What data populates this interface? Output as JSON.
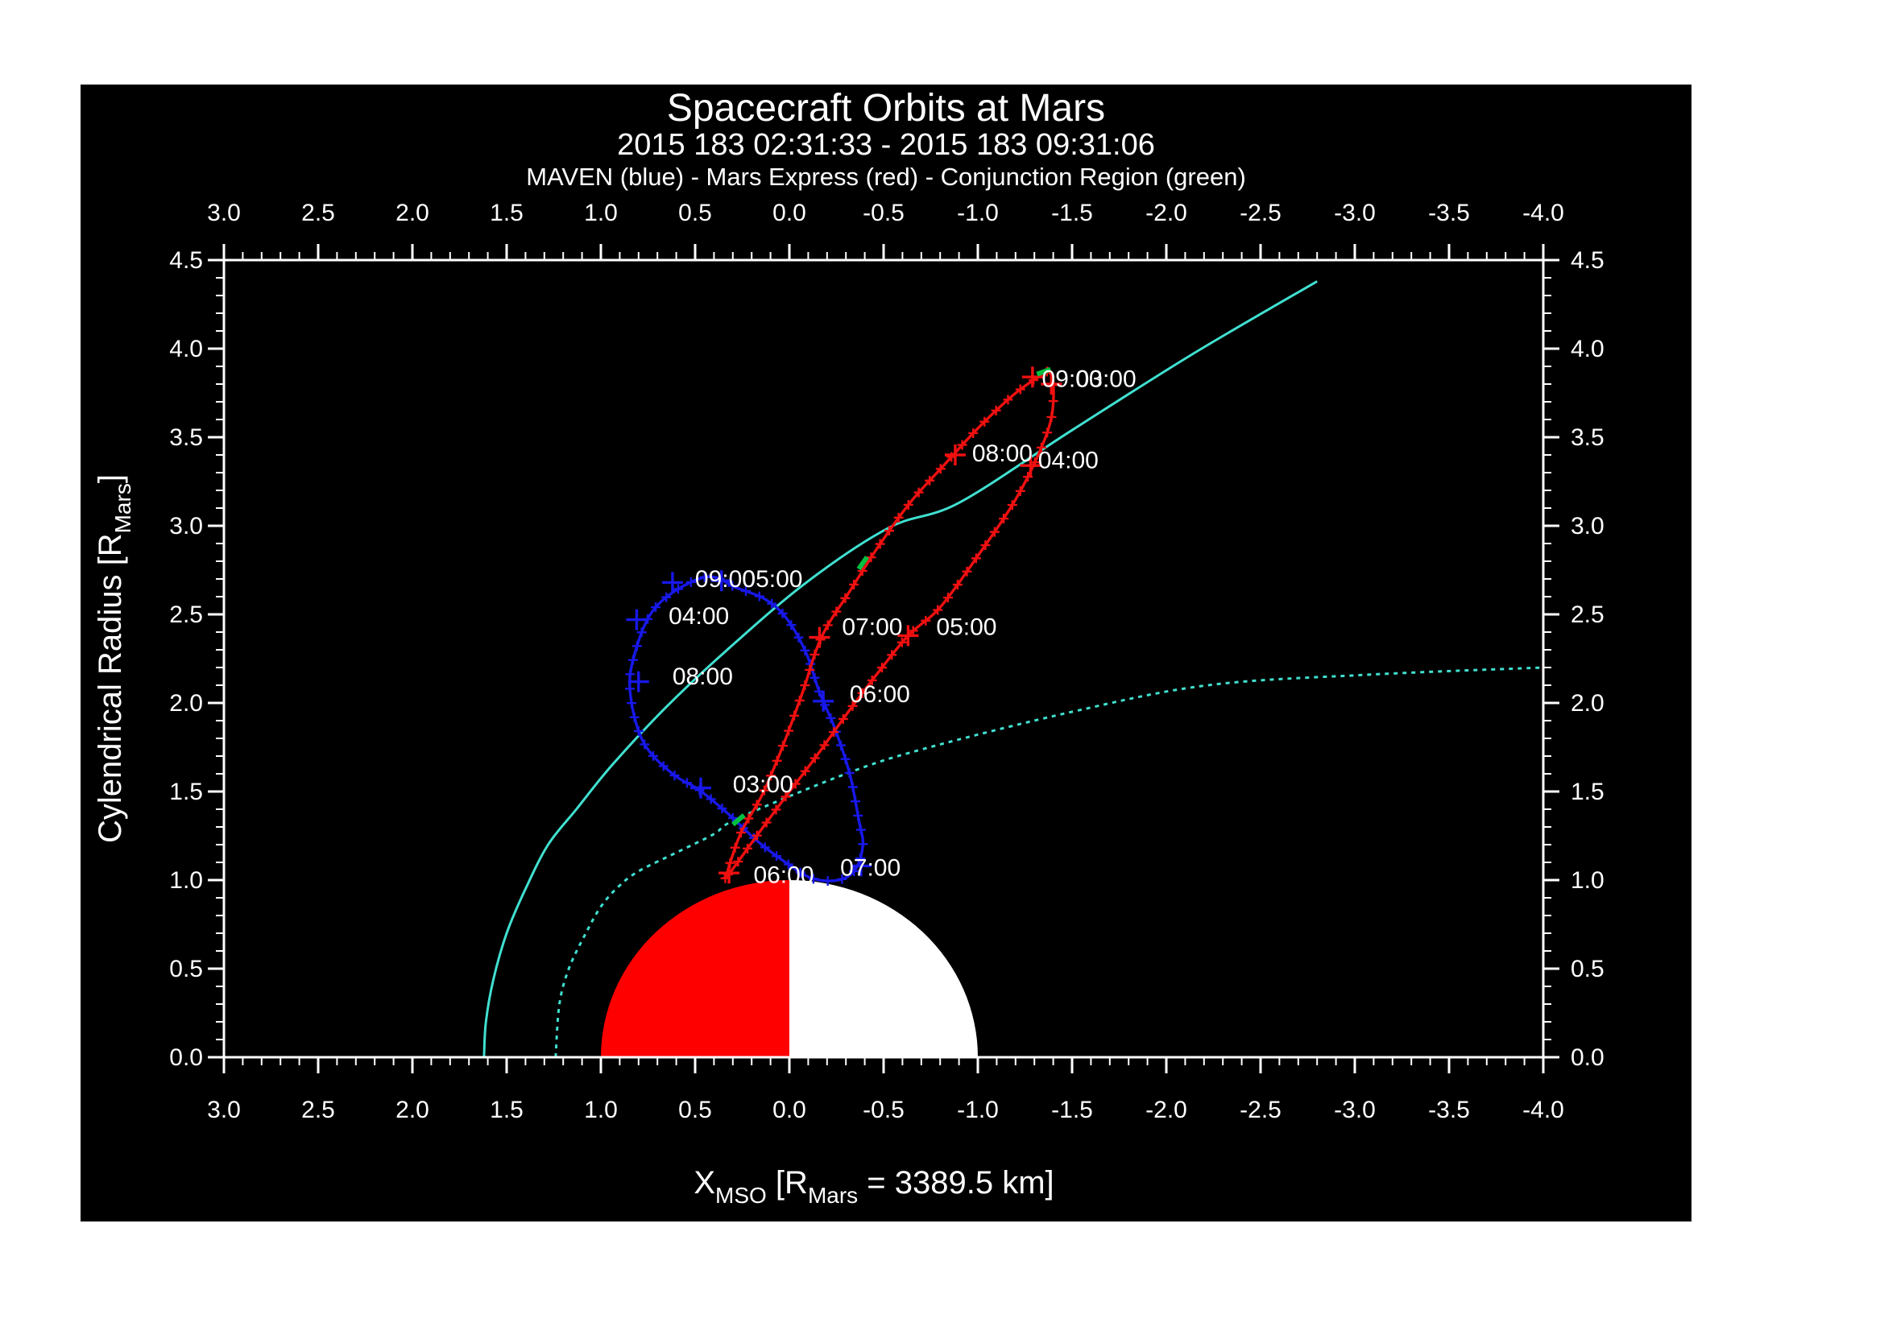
{
  "header": {
    "title": "Spacecraft Orbits at Mars",
    "subtitle": "2015 183 02:31:33 - 2015 183 09:31:06",
    "legend": "MAVEN (blue) - Mars Express (red) - Conjunction Region (green)"
  },
  "colors": {
    "background": "#000000",
    "frame": "#ffffff",
    "maven_blue": "#1818e8",
    "mex_red": "#f01010",
    "mars_day_red": "#ff0000",
    "mars_night_white": "#ffffff",
    "boundary_cyan": "#40e0d0",
    "conjunction_green": "#00c040"
  },
  "axes": {
    "x": {
      "label_parts": [
        "X",
        "MSO",
        " [R",
        "Mars",
        " = 3389.5 km]"
      ],
      "min": 3.0,
      "max": -4.0,
      "major_step": 0.5,
      "minor_step": 0.1,
      "tick_labels": [
        "3.0",
        "2.5",
        "2.0",
        "1.5",
        "1.0",
        "0.5",
        "0.0",
        "-0.5",
        "-1.0",
        "-1.5",
        "-2.0",
        "-2.5",
        "-3.0",
        "-3.5",
        "-4.0"
      ]
    },
    "y": {
      "label_parts": [
        "Cylendrical Radius [R",
        "Mars",
        "]"
      ],
      "min": 0.0,
      "max": 4.5,
      "major_step": 0.5,
      "minor_step": 0.1,
      "tick_labels": [
        "0.0",
        "0.5",
        "1.0",
        "1.5",
        "2.0",
        "2.5",
        "3.0",
        "3.5",
        "4.0",
        "4.5"
      ]
    }
  },
  "chart_data": {
    "type": "line",
    "title": "Spacecraft Orbits at Mars",
    "xlabel": "X_MSO [R_Mars = 3389.5 km]",
    "ylabel": "Cylendrical Radius [R_Mars]",
    "xlim": [
      3.0,
      -4.0
    ],
    "ylim": [
      0.0,
      4.5
    ],
    "grid": false,
    "series": [
      {
        "name": "MAVEN orbit",
        "color_key": "maven_blue",
        "style": "solid",
        "markers": true,
        "closed": true,
        "marker_spacing_px": 18,
        "points": [
          [
            0.45,
            2.71
          ],
          [
            0.71,
            2.54
          ],
          [
            0.83,
            2.24
          ],
          [
            0.84,
            2.02
          ],
          [
            0.77,
            1.77
          ],
          [
            0.62,
            1.6
          ],
          [
            0.48,
            1.51
          ],
          [
            0.32,
            1.37
          ],
          [
            0.17,
            1.22
          ],
          [
            0.02,
            1.1
          ],
          [
            -0.12,
            1.01
          ],
          [
            -0.26,
            1.0
          ],
          [
            -0.35,
            1.06
          ],
          [
            -0.39,
            1.2
          ],
          [
            -0.37,
            1.33
          ],
          [
            -0.32,
            1.6
          ],
          [
            -0.24,
            1.86
          ],
          [
            -0.16,
            2.06
          ],
          [
            -0.09,
            2.28
          ],
          [
            0.01,
            2.47
          ],
          [
            0.12,
            2.58
          ],
          [
            0.28,
            2.65
          ]
        ]
      },
      {
        "name": "Mars Express orbit",
        "color_key": "mex_red",
        "style": "solid",
        "markers": true,
        "closed": false,
        "marker_spacing_px": 20,
        "points": [
          [
            0.34,
            1.01
          ],
          [
            0.26,
            1.26
          ],
          [
            0.14,
            1.49
          ],
          [
            0.03,
            1.77
          ],
          [
            -0.07,
            2.06
          ],
          [
            -0.17,
            2.37
          ],
          [
            -0.32,
            2.63
          ],
          [
            -0.47,
            2.88
          ],
          [
            -0.64,
            3.13
          ],
          [
            -0.81,
            3.33
          ],
          [
            -1.0,
            3.55
          ],
          [
            -1.19,
            3.74
          ],
          [
            -1.32,
            3.84
          ],
          [
            -1.37,
            3.87
          ],
          [
            -1.4,
            3.81
          ],
          [
            -1.39,
            3.61
          ],
          [
            -1.32,
            3.4
          ],
          [
            -1.19,
            3.13
          ],
          [
            -1.0,
            2.83
          ],
          [
            -0.8,
            2.54
          ],
          [
            -0.63,
            2.38
          ],
          [
            -0.47,
            2.17
          ],
          [
            -0.32,
            1.96
          ],
          [
            -0.13,
            1.68
          ],
          [
            0.02,
            1.47
          ],
          [
            0.18,
            1.24
          ],
          [
            0.31,
            1.05
          ],
          [
            0.35,
            1.01
          ]
        ]
      },
      {
        "name": "Bow shock boundary",
        "color_key": "boundary_cyan",
        "style": "solid",
        "markers": false,
        "closed": false,
        "points": [
          [
            -2.8,
            4.38
          ],
          [
            -2.14,
            3.97
          ],
          [
            -1.5,
            3.54
          ],
          [
            -0.9,
            3.13
          ],
          [
            -0.53,
            2.99
          ],
          [
            -0.09,
            2.68
          ],
          [
            0.34,
            2.29
          ],
          [
            0.66,
            1.97
          ],
          [
            0.94,
            1.65
          ],
          [
            1.13,
            1.4
          ],
          [
            1.28,
            1.2
          ],
          [
            1.4,
            0.95
          ],
          [
            1.5,
            0.7
          ],
          [
            1.57,
            0.44
          ],
          [
            1.61,
            0.2
          ],
          [
            1.62,
            0.0
          ]
        ]
      },
      {
        "name": "MPB boundary",
        "color_key": "boundary_cyan",
        "style": "dotted",
        "markers": false,
        "closed": false,
        "points": [
          [
            1.24,
            0.0
          ],
          [
            1.22,
            0.3
          ],
          [
            1.17,
            0.5
          ],
          [
            1.08,
            0.7
          ],
          [
            1.0,
            0.85
          ],
          [
            0.91,
            0.96
          ],
          [
            0.8,
            1.05
          ],
          [
            0.59,
            1.16
          ],
          [
            0.4,
            1.26
          ],
          [
            0.27,
            1.35
          ],
          [
            -0.3,
            1.6
          ],
          [
            -0.71,
            1.74
          ],
          [
            -1.5,
            1.95
          ],
          [
            -2.22,
            2.1
          ],
          [
            -3.08,
            2.16
          ],
          [
            -4.0,
            2.2
          ]
        ]
      }
    ],
    "mars": {
      "center_x": 0.0,
      "center_r": 0.0,
      "radius": 1.0,
      "day_side": "left half red (+X sunward)",
      "night_side": "right half white"
    },
    "time_labels": [
      {
        "series": "maven",
        "text": "03:00",
        "x": 0.14,
        "r": 1.54
      },
      {
        "series": "maven",
        "text": "04:00",
        "x": 0.48,
        "r": 2.49
      },
      {
        "series": "maven",
        "text": "09:00",
        "x": 0.34,
        "r": 2.7
      },
      {
        "series": "maven",
        "text": "05:00",
        "x": 0.09,
        "r": 2.7
      },
      {
        "series": "maven",
        "text": "06:00",
        "x": -0.48,
        "r": 2.05
      },
      {
        "series": "maven",
        "text": "07:00",
        "x": -0.43,
        "r": 1.07
      },
      {
        "series": "maven",
        "text": "08:00",
        "x": 0.46,
        "r": 2.15
      },
      {
        "series": "mex",
        "text": "09:00",
        "x": -1.5,
        "r": 3.83
      },
      {
        "series": "mex",
        "text": "03:00",
        "x": -1.68,
        "r": 3.83
      },
      {
        "series": "mex",
        "text": "04:00",
        "x": -1.48,
        "r": 3.37
      },
      {
        "series": "mex",
        "text": "08:00",
        "x": -1.13,
        "r": 3.41
      },
      {
        "series": "mex",
        "text": "07:00",
        "x": -0.44,
        "r": 2.43
      },
      {
        "series": "mex",
        "text": "05:00",
        "x": -0.94,
        "r": 2.43
      },
      {
        "series": "mex",
        "text": "06:00",
        "x": 0.03,
        "r": 1.03
      }
    ],
    "hour_markers": {
      "maven": [
        [
          0.47,
          1.52
        ],
        [
          0.81,
          2.47
        ],
        [
          0.36,
          2.69
        ],
        [
          -0.18,
          2.01
        ],
        [
          -0.38,
          1.08
        ],
        [
          0.8,
          2.12
        ],
        [
          0.62,
          2.68
        ]
      ],
      "mex": [
        [
          -1.39,
          3.8
        ],
        [
          -1.28,
          3.34
        ],
        [
          -0.63,
          2.38
        ],
        [
          0.32,
          1.04
        ],
        [
          -0.16,
          2.37
        ],
        [
          -0.88,
          3.4
        ],
        [
          -1.29,
          3.84
        ]
      ]
    },
    "conjunction_marks": [
      {
        "x": 0.27,
        "r": 1.34,
        "angle": -40
      },
      {
        "x": -0.39,
        "r": 2.79,
        "angle": -55
      },
      {
        "x": -1.35,
        "r": 3.87,
        "angle": -20
      }
    ]
  }
}
